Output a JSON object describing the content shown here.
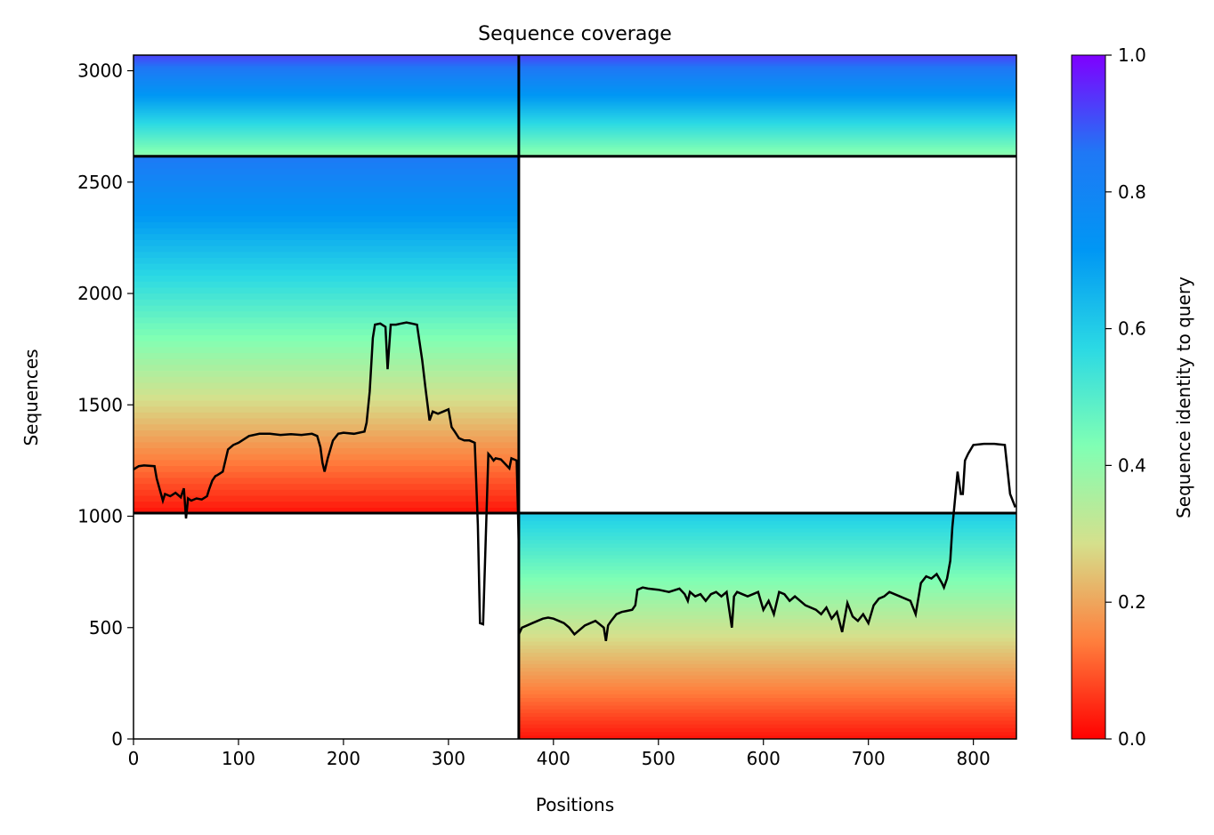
{
  "chart_data": {
    "type": "heatmap",
    "title": "Sequence coverage",
    "xlabel": "Positions",
    "ylabel": "Sequences",
    "xlim": [
      0,
      841
    ],
    "ylim": [
      0,
      3070
    ],
    "x_ticks": [
      0,
      100,
      200,
      300,
      400,
      500,
      600,
      700,
      800
    ],
    "y_ticks": [
      0,
      500,
      1000,
      1500,
      2000,
      2500,
      3000
    ],
    "colorbar": {
      "label": "Sequence identity to query",
      "range": [
        0.0,
        1.0
      ],
      "ticks": [
        0.0,
        0.2,
        0.4,
        0.6,
        0.8,
        1.0
      ],
      "colormap": "rainbow_r",
      "stops": [
        "#ff0000",
        "#ff7f3d",
        "#d5e08c",
        "#80ffb4",
        "#2bd9e4",
        "#0097f4",
        "#1f78f5",
        "#7f00ff"
      ]
    },
    "block_boundaries": {
      "x": 367,
      "y": [
        1014,
        2616
      ]
    },
    "blocks": [
      {
        "name": "chain-A-only",
        "x": [
          0,
          367
        ],
        "y": [
          1014,
          2616
        ],
        "identity_top": 0.85,
        "identity_bottom": 0.02
      },
      {
        "name": "chain-B-only",
        "x": [
          367,
          841
        ],
        "y": [
          0,
          1014
        ],
        "identity_top": 0.6,
        "identity_bottom": 0.02
      },
      {
        "name": "paired",
        "x": [
          0,
          841
        ],
        "y": [
          2616,
          3070
        ],
        "identity_top": 0.92,
        "identity_bottom": 0.4
      }
    ],
    "series": [
      {
        "type": "line",
        "color": "#000000",
        "x": [
          0,
          5,
          10,
          20,
          22,
          25,
          28,
          30,
          35,
          40,
          45,
          48,
          50,
          52,
          55,
          60,
          65,
          70,
          72,
          75,
          78,
          80,
          85,
          90,
          95,
          100,
          110,
          120,
          130,
          140,
          150,
          160,
          170,
          175,
          178,
          180,
          182,
          185,
          190,
          195,
          200,
          210,
          220,
          222,
          225,
          228,
          230,
          235,
          240,
          242,
          245,
          250,
          255,
          260,
          265,
          270,
          275,
          278,
          282,
          285,
          290,
          295,
          300,
          303,
          306,
          310,
          315,
          320,
          325,
          328,
          330,
          333,
          338,
          340,
          343,
          345,
          350,
          355,
          358,
          360,
          365,
          367
        ],
        "y": [
          1210,
          1225,
          1228,
          1225,
          1170,
          1120,
          1070,
          1100,
          1090,
          1105,
          1085,
          1125,
          990,
          1080,
          1070,
          1080,
          1075,
          1090,
          1120,
          1160,
          1180,
          1185,
          1200,
          1300,
          1320,
          1330,
          1360,
          1370,
          1370,
          1365,
          1368,
          1365,
          1370,
          1360,
          1310,
          1240,
          1200,
          1260,
          1340,
          1370,
          1375,
          1370,
          1380,
          1420,
          1560,
          1800,
          1860,
          1865,
          1850,
          1660,
          1860,
          1860,
          1865,
          1870,
          1865,
          1860,
          1700,
          1580,
          1430,
          1470,
          1460,
          1470,
          1480,
          1400,
          1380,
          1350,
          1340,
          1340,
          1330,
          960,
          520,
          515,
          1280,
          1270,
          1250,
          1260,
          1255,
          1230,
          1215,
          1260,
          1250,
          870
        ]
      },
      {
        "type": "line",
        "color": "#000000",
        "x": [
          367,
          370,
          375,
          380,
          385,
          390,
          395,
          400,
          405,
          410,
          415,
          420,
          425,
          430,
          440,
          448,
          450,
          452,
          455,
          460,
          465,
          470,
          475,
          478,
          480,
          485,
          490,
          500,
          510,
          520,
          525,
          528,
          530,
          535,
          540,
          545,
          550,
          555,
          560,
          565,
          570,
          572,
          575,
          580,
          585,
          590,
          595,
          600,
          605,
          610,
          615,
          620,
          625,
          630,
          640,
          650,
          655,
          660,
          665,
          670,
          675,
          680,
          685,
          690,
          695,
          700,
          705,
          710,
          715,
          720,
          730,
          740,
          745,
          750,
          755,
          760,
          765,
          770,
          772,
          775,
          778,
          780,
          782,
          785,
          788,
          790,
          792,
          795,
          800,
          810,
          820,
          830,
          835,
          840
        ],
        "y": [
          470,
          500,
          510,
          520,
          530,
          540,
          545,
          540,
          530,
          520,
          500,
          470,
          490,
          510,
          530,
          500,
          440,
          510,
          530,
          560,
          570,
          575,
          580,
          600,
          670,
          680,
          675,
          670,
          660,
          675,
          650,
          620,
          660,
          640,
          650,
          620,
          650,
          660,
          640,
          660,
          500,
          640,
          660,
          650,
          640,
          650,
          660,
          580,
          620,
          560,
          660,
          650,
          620,
          640,
          600,
          580,
          560,
          590,
          540,
          570,
          480,
          610,
          550,
          530,
          560,
          520,
          600,
          630,
          640,
          660,
          640,
          620,
          560,
          700,
          730,
          720,
          740,
          700,
          680,
          720,
          800,
          950,
          1050,
          1200,
          1100,
          1100,
          1250,
          1280,
          1320,
          1325,
          1325,
          1320,
          1100,
          1040
        ]
      }
    ]
  }
}
